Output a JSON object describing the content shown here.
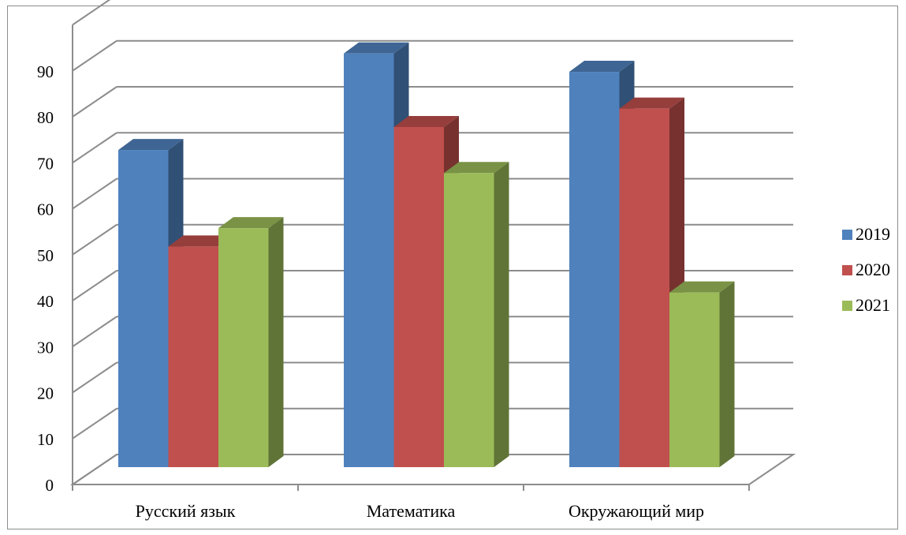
{
  "chart_data": {
    "type": "bar",
    "categories": [
      "Русский язык",
      "Математика",
      "Окружающий мир"
    ],
    "series": [
      {
        "name": "2019",
        "values": [
          69,
          90,
          86
        ],
        "color": "#4F81BD"
      },
      {
        "name": "2020",
        "values": [
          48,
          74,
          78
        ],
        "color": "#C0504D"
      },
      {
        "name": "2021",
        "values": [
          52,
          64,
          38
        ],
        "color": "#9BBB59"
      }
    ],
    "ylim": [
      0,
      90
    ],
    "yticks": [
      "0",
      "10",
      "20",
      "30",
      "40",
      "50",
      "60",
      "70",
      "80",
      "90"
    ],
    "grid": true,
    "legend_position": "right"
  }
}
